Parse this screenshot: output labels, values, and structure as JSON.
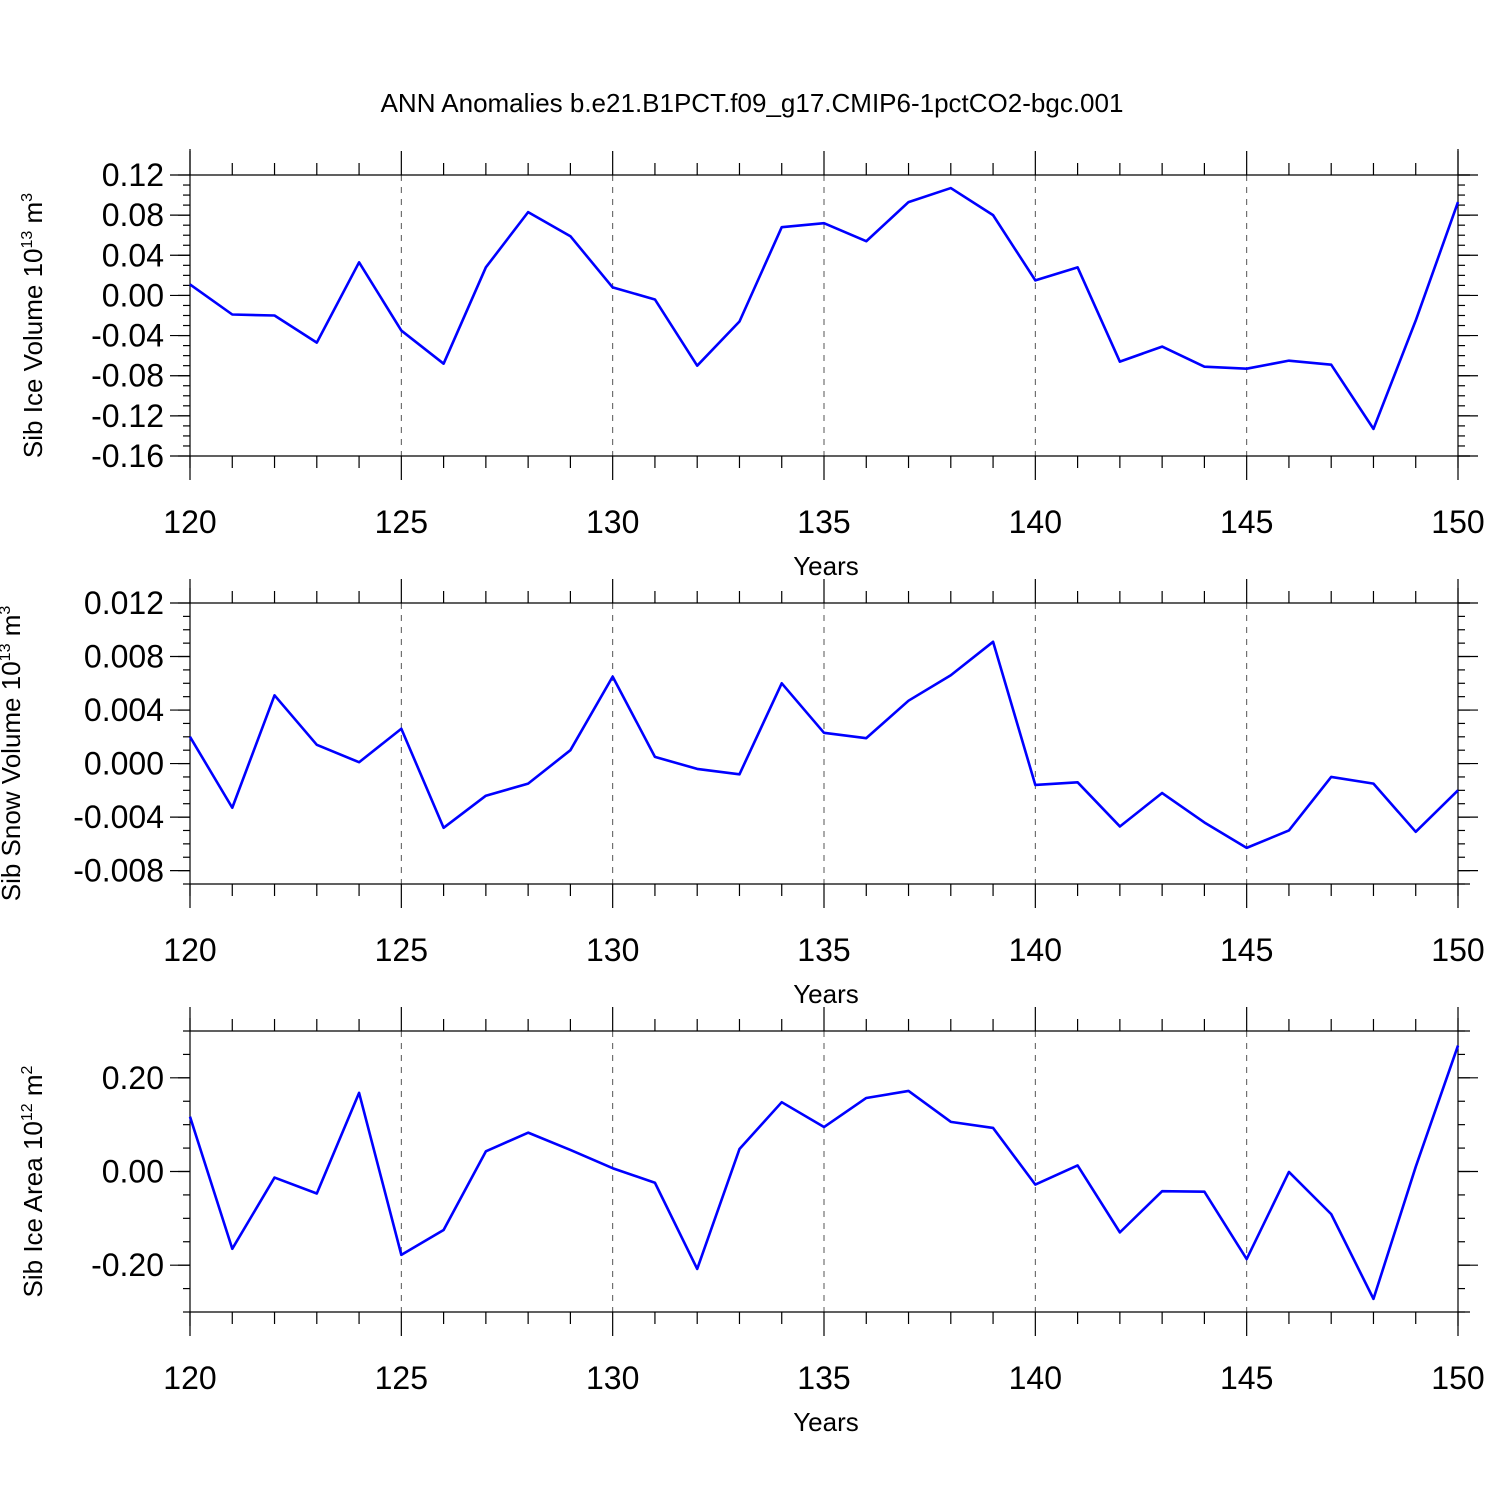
{
  "title": "ANN Anomalies b.e21.B1PCT.f09_g17.CMIP6-1pctCO2-bgc.001",
  "colors": {
    "series": "#0000ff"
  },
  "chart_data": [
    {
      "type": "line",
      "ylabel": {
        "main": "Sib Ice Volume 10",
        "exp": "13",
        "unit": " m",
        "unit_exp": "3"
      },
      "xlabel": "Years",
      "xlim": [
        120,
        150
      ],
      "ylim": [
        -0.16,
        0.12
      ],
      "grid": "vertical-dashed",
      "x_ticks": [
        120,
        125,
        130,
        135,
        140,
        145,
        150
      ],
      "x_tick_labels": [
        "120",
        "125",
        "130",
        "135",
        "140",
        "145",
        "150"
      ],
      "y_ticks": [
        -0.16,
        -0.12,
        -0.08,
        -0.04,
        0.0,
        0.04,
        0.08,
        0.12
      ],
      "y_tick_labels": [
        "-0.16",
        "-0.12",
        "-0.08",
        "-0.04",
        "0.00",
        "0.04",
        "0.08",
        "0.12"
      ],
      "series": [
        {
          "x": [
            120,
            121,
            122,
            123,
            124,
            125,
            126,
            127,
            128,
            129,
            130,
            131,
            132,
            133,
            134,
            135,
            136,
            137,
            138,
            139,
            140,
            141,
            142,
            143,
            144,
            145,
            146,
            147,
            148,
            149,
            150
          ],
          "values": [
            0.011,
            -0.019,
            -0.02,
            -0.047,
            0.033,
            -0.035,
            -0.068,
            0.028,
            0.083,
            0.059,
            0.008,
            -0.004,
            -0.07,
            -0.026,
            0.068,
            0.072,
            0.054,
            0.093,
            0.107,
            0.08,
            0.015,
            0.028,
            -0.066,
            -0.051,
            -0.071,
            -0.073,
            -0.065,
            -0.069,
            -0.133,
            -0.025,
            0.093
          ]
        }
      ]
    },
    {
      "type": "line",
      "ylabel": {
        "main": "Sib Snow Volume 10",
        "exp": "13",
        "unit": " m",
        "unit_exp": "3"
      },
      "xlabel": "Years",
      "xlim": [
        120,
        150
      ],
      "ylim": [
        -0.009,
        0.012
      ],
      "grid": "vertical-dashed",
      "x_ticks": [
        120,
        125,
        130,
        135,
        140,
        145,
        150
      ],
      "x_tick_labels": [
        "120",
        "125",
        "130",
        "135",
        "140",
        "145",
        "150"
      ],
      "y_ticks": [
        -0.008,
        -0.004,
        0.0,
        0.004,
        0.008,
        0.012
      ],
      "y_tick_labels": [
        "-0.008",
        "-0.004",
        "0.000",
        "0.004",
        "0.008",
        "0.012"
      ],
      "series": [
        {
          "x": [
            120,
            121,
            122,
            123,
            124,
            125,
            126,
            127,
            128,
            129,
            130,
            131,
            132,
            133,
            134,
            135,
            136,
            137,
            138,
            139,
            140,
            141,
            142,
            143,
            144,
            145,
            146,
            147,
            148,
            149,
            150
          ],
          "values": [
            0.002,
            -0.0033,
            0.0051,
            0.0014,
            0.0001,
            0.0026,
            -0.0048,
            -0.0024,
            -0.0015,
            0.001,
            0.0065,
            0.0005,
            -0.0004,
            -0.0008,
            0.006,
            0.0023,
            0.0019,
            0.0047,
            0.0066,
            0.0091,
            -0.0016,
            -0.0014,
            -0.0047,
            -0.0022,
            -0.0044,
            -0.0063,
            -0.005,
            -0.001,
            -0.0015,
            -0.0051,
            -0.002
          ]
        }
      ]
    },
    {
      "type": "line",
      "ylabel": {
        "main": "Sib Ice Area 10",
        "exp": "12",
        "unit": " m",
        "unit_exp": "2"
      },
      "xlabel": "Years",
      "xlim": [
        120,
        150
      ],
      "ylim": [
        -0.3,
        0.3
      ],
      "grid": "vertical-dashed",
      "x_ticks": [
        120,
        125,
        130,
        135,
        140,
        145,
        150
      ],
      "x_tick_labels": [
        "120",
        "125",
        "130",
        "135",
        "140",
        "145",
        "150"
      ],
      "y_ticks": [
        -0.2,
        0.0,
        0.2
      ],
      "y_tick_labels": [
        "-0.20",
        "0.00",
        "0.20"
      ],
      "series": [
        {
          "x": [
            120,
            121,
            122,
            123,
            124,
            125,
            126,
            127,
            128,
            129,
            130,
            131,
            132,
            133,
            134,
            135,
            136,
            137,
            138,
            139,
            140,
            141,
            142,
            143,
            144,
            145,
            146,
            147,
            148,
            149,
            150
          ],
          "values": [
            0.117,
            -0.165,
            -0.013,
            -0.047,
            0.168,
            -0.178,
            -0.125,
            0.043,
            0.083,
            0.046,
            0.007,
            -0.024,
            -0.208,
            0.048,
            0.148,
            0.095,
            0.157,
            0.172,
            0.106,
            0.093,
            -0.028,
            0.013,
            -0.13,
            -0.042,
            -0.043,
            -0.187,
            -0.001,
            -0.091,
            -0.272,
            0.01,
            0.269
          ]
        }
      ]
    }
  ]
}
